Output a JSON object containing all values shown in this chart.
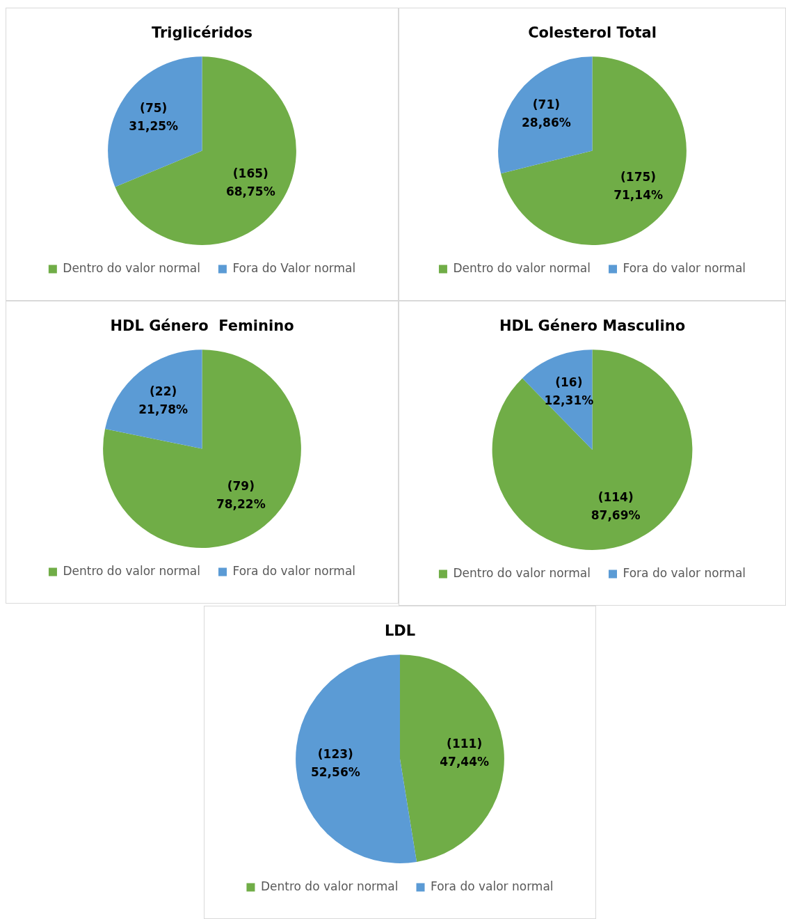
{
  "chart_data": [
    {
      "type": "pie",
      "title": "Triglicéridos",
      "categories": [
        "Dentro do valor normal",
        "Fora do Valor normal"
      ],
      "values": [
        165,
        75
      ],
      "colors": [
        "#70ad47",
        "#5b9bd5"
      ],
      "value_labels": [
        "(165)\n68,75%",
        "(75)\n31,25%"
      ],
      "legend": "bottom"
    },
    {
      "type": "pie",
      "title": "Colesterol Total",
      "categories": [
        "Dentro do valor normal",
        "Fora do valor normal"
      ],
      "values": [
        175,
        71
      ],
      "colors": [
        "#70ad47",
        "#5b9bd5"
      ],
      "value_labels": [
        "(175)\n71,14%",
        "(71)\n28,86%"
      ],
      "legend": "bottom"
    },
    {
      "type": "pie",
      "title": "HDL Género  Feminino",
      "categories": [
        "Dentro do valor normal",
        "Fora do valor normal"
      ],
      "values": [
        79,
        22
      ],
      "colors": [
        "#70ad47",
        "#5b9bd5"
      ],
      "value_labels": [
        "(79)\n78,22%",
        "(22)\n21,78%"
      ],
      "legend": "bottom"
    },
    {
      "type": "pie",
      "title": "HDL Género Masculino",
      "categories": [
        "Dentro do valor normal",
        "Fora do valor normal"
      ],
      "values": [
        114,
        16
      ],
      "colors": [
        "#70ad47",
        "#5b9bd5"
      ],
      "value_labels": [
        "(114)\n87,69%",
        "(16)\n12,31%"
      ],
      "legend": "bottom"
    },
    {
      "type": "pie",
      "title": "LDL",
      "categories": [
        "Dentro do valor normal",
        "Fora do valor normal"
      ],
      "values": [
        111,
        123
      ],
      "colors": [
        "#70ad47",
        "#5b9bd5"
      ],
      "value_labels": [
        "(111)\n47,44%",
        "(123)\n52,56%"
      ],
      "legend": "bottom"
    }
  ]
}
